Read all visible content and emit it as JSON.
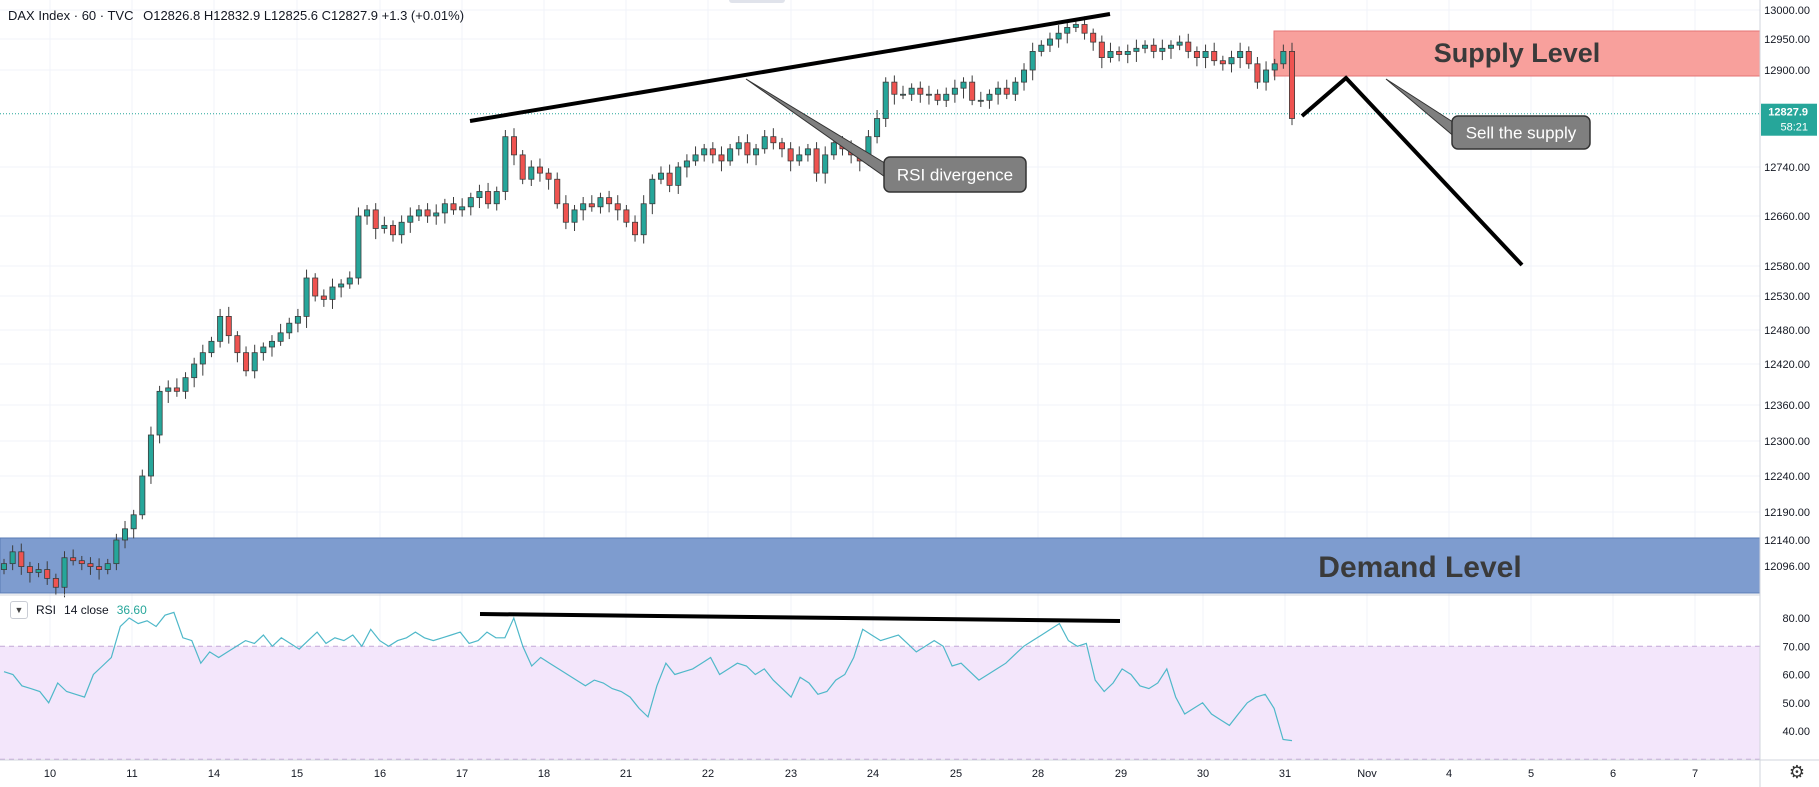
{
  "legend": {
    "symbol": "DAX Index · 60 · TVC",
    "ohlc": "O12826.8  H12832.9  L12825.6  C12827.9  +1.3 (+0.01%)"
  },
  "price_label": {
    "value": "12827.9",
    "countdown": "58:21"
  },
  "rsi_legend": {
    "name": "RSI",
    "params": "14 close",
    "value": "36.60"
  },
  "zones": {
    "supply": "Supply Level",
    "demand": "Demand Level"
  },
  "callouts": {
    "rsi": "RSI divergence",
    "sell": "Sell the supply"
  },
  "colors": {
    "up": "#26a69a",
    "down": "#ef5350",
    "supply": "#f8a09c",
    "demand": "#7e9ccf",
    "rsi": "#4fb8c9",
    "rsi_band": "#f3e6fb"
  },
  "chart_data": [
    {
      "type": "candlestick",
      "title": "DAX Index · 60 · TVC",
      "y_ticks": [
        12096,
        12140,
        12190,
        12240,
        12300,
        12360,
        12420,
        12480,
        12530,
        12580,
        12660,
        12740,
        12900,
        12950,
        13000
      ],
      "x_ticks": [
        "10",
        "11",
        "14",
        "15",
        "16",
        "17",
        "18",
        "21",
        "22",
        "23",
        "24",
        "25",
        "28",
        "29",
        "30",
        "31",
        "Nov",
        "4",
        "5",
        "6",
        "7"
      ],
      "ylim": [
        12060,
        13015
      ],
      "last_price": 12827.9,
      "closes": [
        12100,
        12120,
        12095,
        12085,
        12090,
        12075,
        12060,
        12110,
        12105,
        12100,
        12095,
        12090,
        12100,
        12140,
        12160,
        12185,
        12240,
        12310,
        12380,
        12385,
        12380,
        12400,
        12420,
        12440,
        12460,
        12500,
        12470,
        12440,
        12410,
        12440,
        12450,
        12460,
        12475,
        12490,
        12500,
        12560,
        12530,
        12525,
        12545,
        12550,
        12560,
        12660,
        12670,
        12640,
        12645,
        12630,
        12650,
        12660,
        12670,
        12660,
        12665,
        12680,
        12670,
        12675,
        12690,
        12700,
        12680,
        12700,
        12790,
        12760,
        12720,
        12740,
        12730,
        12720,
        12680,
        12650,
        12670,
        12680,
        12675,
        12690,
        12680,
        12670,
        12650,
        12630,
        12680,
        12720,
        12730,
        12710,
        12740,
        12750,
        12760,
        12770,
        12760,
        12750,
        12770,
        12780,
        12760,
        12770,
        12790,
        12780,
        12770,
        12750,
        12760,
        12770,
        12730,
        12760,
        12780,
        12770,
        12760,
        12750,
        12790,
        12820,
        12880,
        12860,
        12860,
        12870,
        12860,
        12860,
        12850,
        12860,
        12870,
        12880,
        12850,
        12850,
        12860,
        12870,
        12860,
        12880,
        12900,
        12930,
        12940,
        12950,
        12960,
        12970,
        12975,
        12960,
        12945,
        12920,
        12930,
        12925,
        12930,
        12935,
        12940,
        12930,
        12935,
        12940,
        12945,
        12930,
        12920,
        12930,
        12915,
        12910,
        12920,
        12930,
        12910,
        12880,
        12900,
        12910,
        12930,
        12820
      ],
      "rsi": {
        "name": "RSI 14 close",
        "value": 36.6,
        "y_ticks": [
          40,
          50,
          60,
          70,
          80
        ],
        "overbought": 70,
        "oversold": 30,
        "values": [
          61,
          60,
          56,
          55,
          54,
          50,
          57,
          54,
          53,
          52,
          60,
          63,
          66,
          77,
          80,
          78,
          79,
          77,
          81,
          82,
          73,
          72,
          64,
          68,
          66,
          68,
          70,
          72,
          71,
          74,
          70,
          73,
          71,
          69,
          72,
          75,
          71,
          73,
          72,
          74,
          70,
          76,
          72,
          70,
          72,
          73,
          75,
          73,
          72,
          73,
          74,
          75,
          71,
          72,
          75,
          73,
          73,
          80,
          70,
          63,
          66,
          64,
          62,
          60,
          58,
          56,
          58,
          57,
          55,
          54,
          52,
          48,
          45,
          56,
          64,
          60,
          61,
          62,
          64,
          66,
          60,
          62,
          64,
          63,
          60,
          62,
          58,
          55,
          52,
          59,
          57,
          53,
          54,
          58,
          60,
          66,
          76,
          74,
          72,
          73,
          74,
          71,
          68,
          70,
          72,
          70,
          63,
          64,
          61,
          58,
          60,
          62,
          64,
          67,
          70,
          72,
          74,
          76,
          78,
          72,
          70,
          71,
          58,
          54,
          57,
          62,
          60,
          56,
          55,
          57,
          62,
          52,
          46,
          48,
          50,
          46,
          44,
          42,
          46,
          50,
          52,
          53,
          48,
          37,
          36.6
        ]
      }
    }
  ]
}
